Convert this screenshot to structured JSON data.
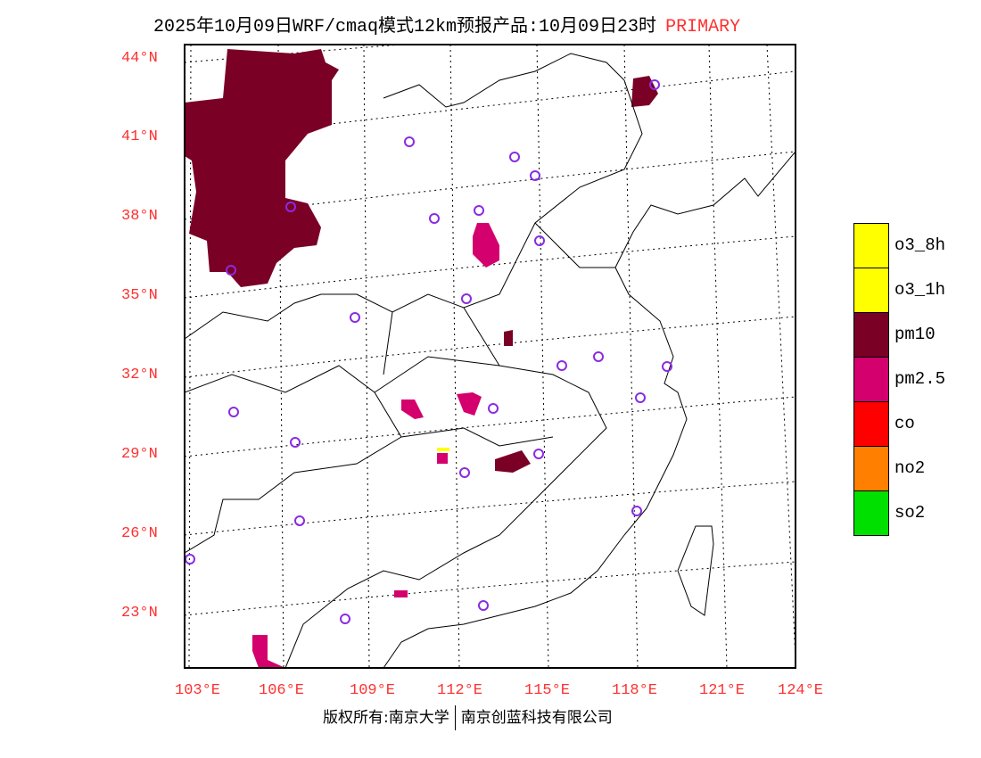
{
  "title": {
    "main": "2025年10月09日WRF/cmaq模式12km预报产品:10月09日23时",
    "product": "PRIMARY"
  },
  "lat_labels": [
    "44°N",
    "41°N",
    "38°N",
    "35°N",
    "32°N",
    "29°N",
    "26°N",
    "23°N"
  ],
  "lon_labels": [
    "103°E",
    "106°E",
    "109°E",
    "112°E",
    "115°E",
    "118°E",
    "121°E",
    "124°E"
  ],
  "legend": [
    {
      "label": "o3_8h",
      "color": "#ffff00"
    },
    {
      "label": "o3_1h",
      "color": "#ffff00"
    },
    {
      "label": "pm10",
      "color": "#7a0026"
    },
    {
      "label": "pm2.5",
      "color": "#d4006e"
    },
    {
      "label": "co",
      "color": "#ff0000"
    },
    {
      "label": "no2",
      "color": "#ff7f00"
    },
    {
      "label": "so2",
      "color": "#00e000"
    }
  ],
  "footer": {
    "left": "版权所有:南京大学",
    "right": "南京创蓝科技有限公司"
  }
}
